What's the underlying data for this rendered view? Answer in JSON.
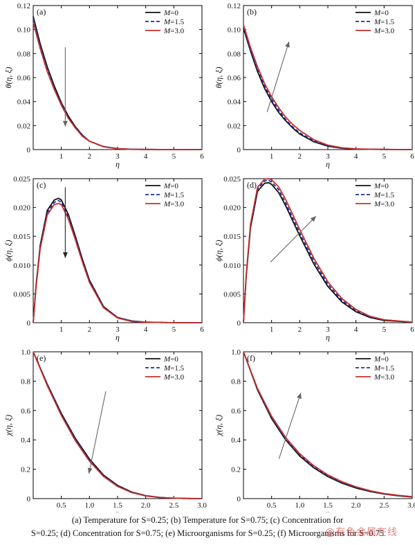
{
  "chart_data": [
    {
      "type": "line",
      "panel_label": "(a)",
      "ylabel": "θ(η, ξ)",
      "xlabel": "η",
      "xlim": [
        0,
        6
      ],
      "ylim": [
        0,
        0.12
      ],
      "xticks": [
        1,
        2,
        3,
        4,
        5,
        6
      ],
      "yticks": [
        0,
        0.02,
        0.04,
        0.06,
        0.08,
        0.1,
        0.12
      ],
      "ytick_labels": [
        "0",
        "0.02",
        "0.04",
        "0.06",
        "0.08",
        "0.10",
        "0.12"
      ],
      "legend_position": "top-right",
      "arrow": "down",
      "x": [
        0,
        0.25,
        0.5,
        0.75,
        1,
        1.25,
        1.5,
        1.75,
        2,
        2.5,
        3,
        3.5,
        4,
        5,
        6
      ],
      "series": [
        {
          "name": "M=0",
          "values": [
            0.111,
            0.088,
            0.069,
            0.053,
            0.039,
            0.028,
            0.019,
            0.012,
            0.007,
            0.0025,
            0.0008,
            0.0003,
            0.0001,
            0,
            0
          ]
        },
        {
          "name": "M=1.5",
          "values": [
            0.109,
            0.086,
            0.067,
            0.051,
            0.038,
            0.027,
            0.018,
            0.012,
            0.007,
            0.0024,
            0.0008,
            0.0003,
            0.0001,
            0,
            0
          ]
        },
        {
          "name": "M=3.0",
          "values": [
            0.106,
            0.084,
            0.065,
            0.05,
            0.037,
            0.026,
            0.018,
            0.011,
            0.007,
            0.0023,
            0.0007,
            0.0002,
            0.0001,
            0,
            0
          ]
        }
      ]
    },
    {
      "type": "line",
      "panel_label": "(b)",
      "ylabel": "θ(η, ξ)",
      "xlabel": "η",
      "xlim": [
        0,
        6
      ],
      "ylim": [
        0,
        0.12
      ],
      "xticks": [
        1,
        2,
        3,
        4,
        5,
        6
      ],
      "yticks": [
        0,
        0.02,
        0.04,
        0.06,
        0.08,
        0.1,
        0.12
      ],
      "ytick_labels": [
        "0",
        "0.02",
        "0.04",
        "0.06",
        "0.08",
        "0.10",
        "0.12"
      ],
      "legend_position": "top-right",
      "arrow": "up",
      "x": [
        0,
        0.25,
        0.5,
        0.75,
        1,
        1.25,
        1.5,
        1.75,
        2,
        2.5,
        3,
        3.5,
        4,
        5,
        6
      ],
      "series": [
        {
          "name": "M=0",
          "values": [
            0.101,
            0.082,
            0.065,
            0.051,
            0.04,
            0.031,
            0.024,
            0.018,
            0.013,
            0.0065,
            0.0028,
            0.0011,
            0.0004,
            0.0001,
            0
          ]
        },
        {
          "name": "M=1.5",
          "values": [
            0.102,
            0.083,
            0.067,
            0.053,
            0.042,
            0.033,
            0.025,
            0.019,
            0.014,
            0.0072,
            0.0032,
            0.0013,
            0.0005,
            0.0001,
            0
          ]
        },
        {
          "name": "M=3.0",
          "values": [
            0.104,
            0.085,
            0.069,
            0.055,
            0.044,
            0.035,
            0.027,
            0.021,
            0.016,
            0.0082,
            0.0037,
            0.0015,
            0.0006,
            0.0001,
            0
          ]
        }
      ]
    },
    {
      "type": "line",
      "panel_label": "(c)",
      "ylabel": "ϕ(η, ξ)",
      "xlabel": "η",
      "xlim": [
        0,
        6
      ],
      "ylim": [
        0,
        0.025
      ],
      "xticks": [
        1,
        2,
        3,
        4,
        5,
        6
      ],
      "yticks": [
        0,
        0.005,
        0.01,
        0.015,
        0.02,
        0.025
      ],
      "ytick_labels": [
        "0",
        "0.005",
        "0.010",
        "0.015",
        "0.020",
        "0.025"
      ],
      "legend_position": "top-right",
      "arrow": "down",
      "x": [
        0,
        0.1,
        0.25,
        0.5,
        0.75,
        0.9,
        1,
        1.25,
        1.5,
        1.75,
        2,
        2.5,
        3,
        3.5,
        4,
        5,
        6
      ],
      "series": [
        {
          "name": "M=0",
          "values": [
            0,
            0.0065,
            0.0135,
            0.0195,
            0.0213,
            0.0216,
            0.0213,
            0.0188,
            0.015,
            0.011,
            0.0074,
            0.0028,
            0.0009,
            0.0003,
            0.0001,
            0,
            0
          ]
        },
        {
          "name": "M=1.5",
          "values": [
            0,
            0.0063,
            0.0132,
            0.0191,
            0.0209,
            0.0212,
            0.0209,
            0.0184,
            0.0147,
            0.0107,
            0.0072,
            0.0027,
            0.0009,
            0.0003,
            0.0001,
            0,
            0
          ]
        },
        {
          "name": "M=3.0",
          "values": [
            0,
            0.0061,
            0.0129,
            0.0187,
            0.0205,
            0.0207,
            0.0205,
            0.018,
            0.0144,
            0.0105,
            0.007,
            0.0026,
            0.0008,
            0.0002,
            0.0001,
            0,
            0
          ]
        }
      ]
    },
    {
      "type": "line",
      "panel_label": "(d)",
      "ylabel": "ϕ(η, ξ)",
      "xlabel": "η",
      "xlim": [
        0,
        6
      ],
      "ylim": [
        0,
        0.025
      ],
      "xticks": [
        1,
        2,
        3,
        4,
        5,
        6
      ],
      "yticks": [
        0,
        0.005,
        0.01,
        0.015,
        0.02,
        0.025
      ],
      "ytick_labels": [
        "0",
        "0.005",
        "0.010",
        "0.015",
        "0.020",
        "0.025"
      ],
      "legend_position": "top-right",
      "arrow": "up",
      "x": [
        0,
        0.1,
        0.25,
        0.5,
        0.75,
        0.9,
        1,
        1.25,
        1.5,
        2,
        2.5,
        3,
        3.5,
        4,
        4.5,
        5,
        6
      ],
      "series": [
        {
          "name": "M=0",
          "values": [
            0,
            0.0082,
            0.0165,
            0.0228,
            0.0242,
            0.0243,
            0.024,
            0.0226,
            0.0203,
            0.0151,
            0.0102,
            0.0063,
            0.0036,
            0.0019,
            0.0009,
            0.0004,
            0.0001
          ]
        },
        {
          "name": "M=1.5",
          "values": [
            0,
            0.0084,
            0.0168,
            0.0232,
            0.0246,
            0.0247,
            0.0244,
            0.0231,
            0.0208,
            0.0156,
            0.0107,
            0.0067,
            0.0039,
            0.0021,
            0.001,
            0.0005,
            0.0001
          ]
        },
        {
          "name": "M=3.0",
          "values": [
            0,
            0.0086,
            0.0171,
            0.0235,
            0.0249,
            0.025,
            0.0248,
            0.0236,
            0.0214,
            0.0162,
            0.0112,
            0.0071,
            0.0042,
            0.0023,
            0.0011,
            0.0005,
            0.0001
          ]
        }
      ]
    },
    {
      "type": "line",
      "panel_label": "(e)",
      "ylabel": "χ(η, ξ)",
      "xlabel": "η",
      "xlim": [
        0,
        3.0
      ],
      "ylim": [
        0,
        1.0
      ],
      "xticks": [
        0.5,
        1.0,
        1.5,
        2.0,
        2.5,
        3.0
      ],
      "xtick_labels": [
        "0.5",
        "1.0",
        "1.5",
        "2.0",
        "2.5",
        "3.0"
      ],
      "yticks": [
        0,
        0.2,
        0.4,
        0.6,
        0.8,
        1.0
      ],
      "ytick_labels": [
        "0",
        "0.2",
        "0.4",
        "0.6",
        "0.8",
        "1.0"
      ],
      "legend_position": "top-right",
      "arrow": "down",
      "x": [
        0,
        0.25,
        0.5,
        0.75,
        1.0,
        1.25,
        1.5,
        1.75,
        2.0,
        2.25,
        2.5,
        2.75,
        3.0
      ],
      "series": [
        {
          "name": "M=0",
          "values": [
            1.0,
            0.78,
            0.58,
            0.41,
            0.27,
            0.16,
            0.09,
            0.045,
            0.02,
            0.008,
            0.003,
            0.001,
            0
          ]
        },
        {
          "name": "M=1.5",
          "values": [
            1.0,
            0.775,
            0.573,
            0.402,
            0.262,
            0.156,
            0.086,
            0.043,
            0.019,
            0.008,
            0.003,
            0.001,
            0
          ]
        },
        {
          "name": "M=3.0",
          "values": [
            1.0,
            0.77,
            0.566,
            0.394,
            0.255,
            0.151,
            0.083,
            0.041,
            0.018,
            0.007,
            0.003,
            0.001,
            0
          ]
        }
      ]
    },
    {
      "type": "line",
      "panel_label": "(f)",
      "ylabel": "χ(η, ξ)",
      "xlabel": "η",
      "xlim": [
        0,
        3.0
      ],
      "ylim": [
        0,
        1.0
      ],
      "xticks": [
        0.5,
        1.0,
        1.5,
        2.0,
        2.5,
        3.0
      ],
      "xtick_labels": [
        "0.5",
        "1.0",
        "1.5",
        "2.0",
        "2.5",
        "3.0"
      ],
      "yticks": [
        0,
        0.2,
        0.4,
        0.6,
        0.8,
        1.0
      ],
      "ytick_labels": [
        "0",
        "0.2",
        "0.4",
        "0.6",
        "0.8",
        "1.0"
      ],
      "legend_position": "top-right",
      "arrow": "up",
      "x": [
        0,
        0.25,
        0.5,
        0.75,
        1.0,
        1.25,
        1.5,
        1.75,
        2.0,
        2.25,
        2.5,
        2.75,
        3.0
      ],
      "series": [
        {
          "name": "M=0",
          "values": [
            1.0,
            0.74,
            0.545,
            0.4,
            0.29,
            0.21,
            0.15,
            0.105,
            0.072,
            0.048,
            0.031,
            0.019,
            0.011
          ]
        },
        {
          "name": "M=1.5",
          "values": [
            1.0,
            0.745,
            0.553,
            0.408,
            0.298,
            0.217,
            0.156,
            0.11,
            0.076,
            0.051,
            0.033,
            0.021,
            0.012
          ]
        },
        {
          "name": "M=3.0",
          "values": [
            1.0,
            0.75,
            0.561,
            0.416,
            0.306,
            0.224,
            0.162,
            0.115,
            0.08,
            0.054,
            0.035,
            0.022,
            0.013
          ]
        }
      ]
    }
  ],
  "series_colors": [
    "#111111",
    "#1f2aa0",
    "#c4302b"
  ],
  "series_dash": [
    "solid",
    "dashed",
    "solid"
  ],
  "caption": {
    "line1": "(a) Temperature for S=0.25; (b) Temperature for S=0.75; (c) Concentration for",
    "line2": "S=0.25; (d) Concentration for S=0.75; (e) Microorganisms for S=0.25; (f) Microorganisms for S=0.75"
  },
  "watermark": "@有色金属在线"
}
